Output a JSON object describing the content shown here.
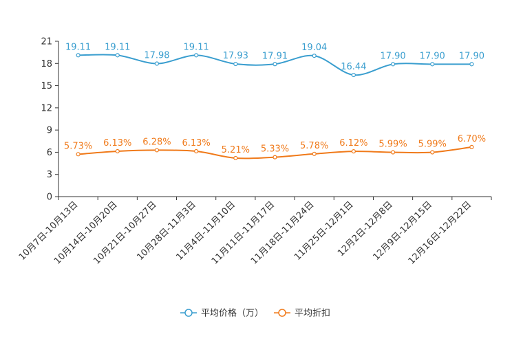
{
  "chart_data": {
    "type": "line",
    "title": "",
    "xlabel": "",
    "ylabel": "",
    "ylim": [
      0,
      21
    ],
    "yticks": [
      0,
      3,
      6,
      9,
      12,
      15,
      18,
      21
    ],
    "grid": false,
    "legend_position": "bottom-center",
    "categories": [
      "10月7日-10月13日",
      "10月14日-10月20日",
      "10月21日-10月27日",
      "10月28日-11月3日",
      "11月4日-11月10日",
      "11月11日-11月17日",
      "11月18日-11月24日",
      "11月25日-12月1日",
      "12月2日-12月8日",
      "12月9日-12月15日",
      "12月16日-12月22日"
    ],
    "series": [
      {
        "name": "平均价格（万）",
        "color": "#3a9ecf",
        "values": [
          19.11,
          19.11,
          17.98,
          19.11,
          17.93,
          17.91,
          19.04,
          16.44,
          17.9,
          17.9,
          17.9
        ],
        "labels": [
          "19.11",
          "19.11",
          "17.98",
          "19.11",
          "17.93",
          "17.91",
          "19.04",
          "16.44",
          "17.90",
          "17.90",
          "17.90"
        ]
      },
      {
        "name": "平均折扣",
        "color": "#f07a1a",
        "values": [
          5.73,
          6.13,
          6.28,
          6.13,
          5.21,
          5.33,
          5.78,
          6.12,
          5.99,
          5.99,
          6.7
        ],
        "labels": [
          "5.73%",
          "6.13%",
          "6.28%",
          "6.13%",
          "5.21%",
          "5.33%",
          "5.78%",
          "6.12%",
          "5.99%",
          "5.99%",
          "6.70%"
        ]
      }
    ]
  }
}
